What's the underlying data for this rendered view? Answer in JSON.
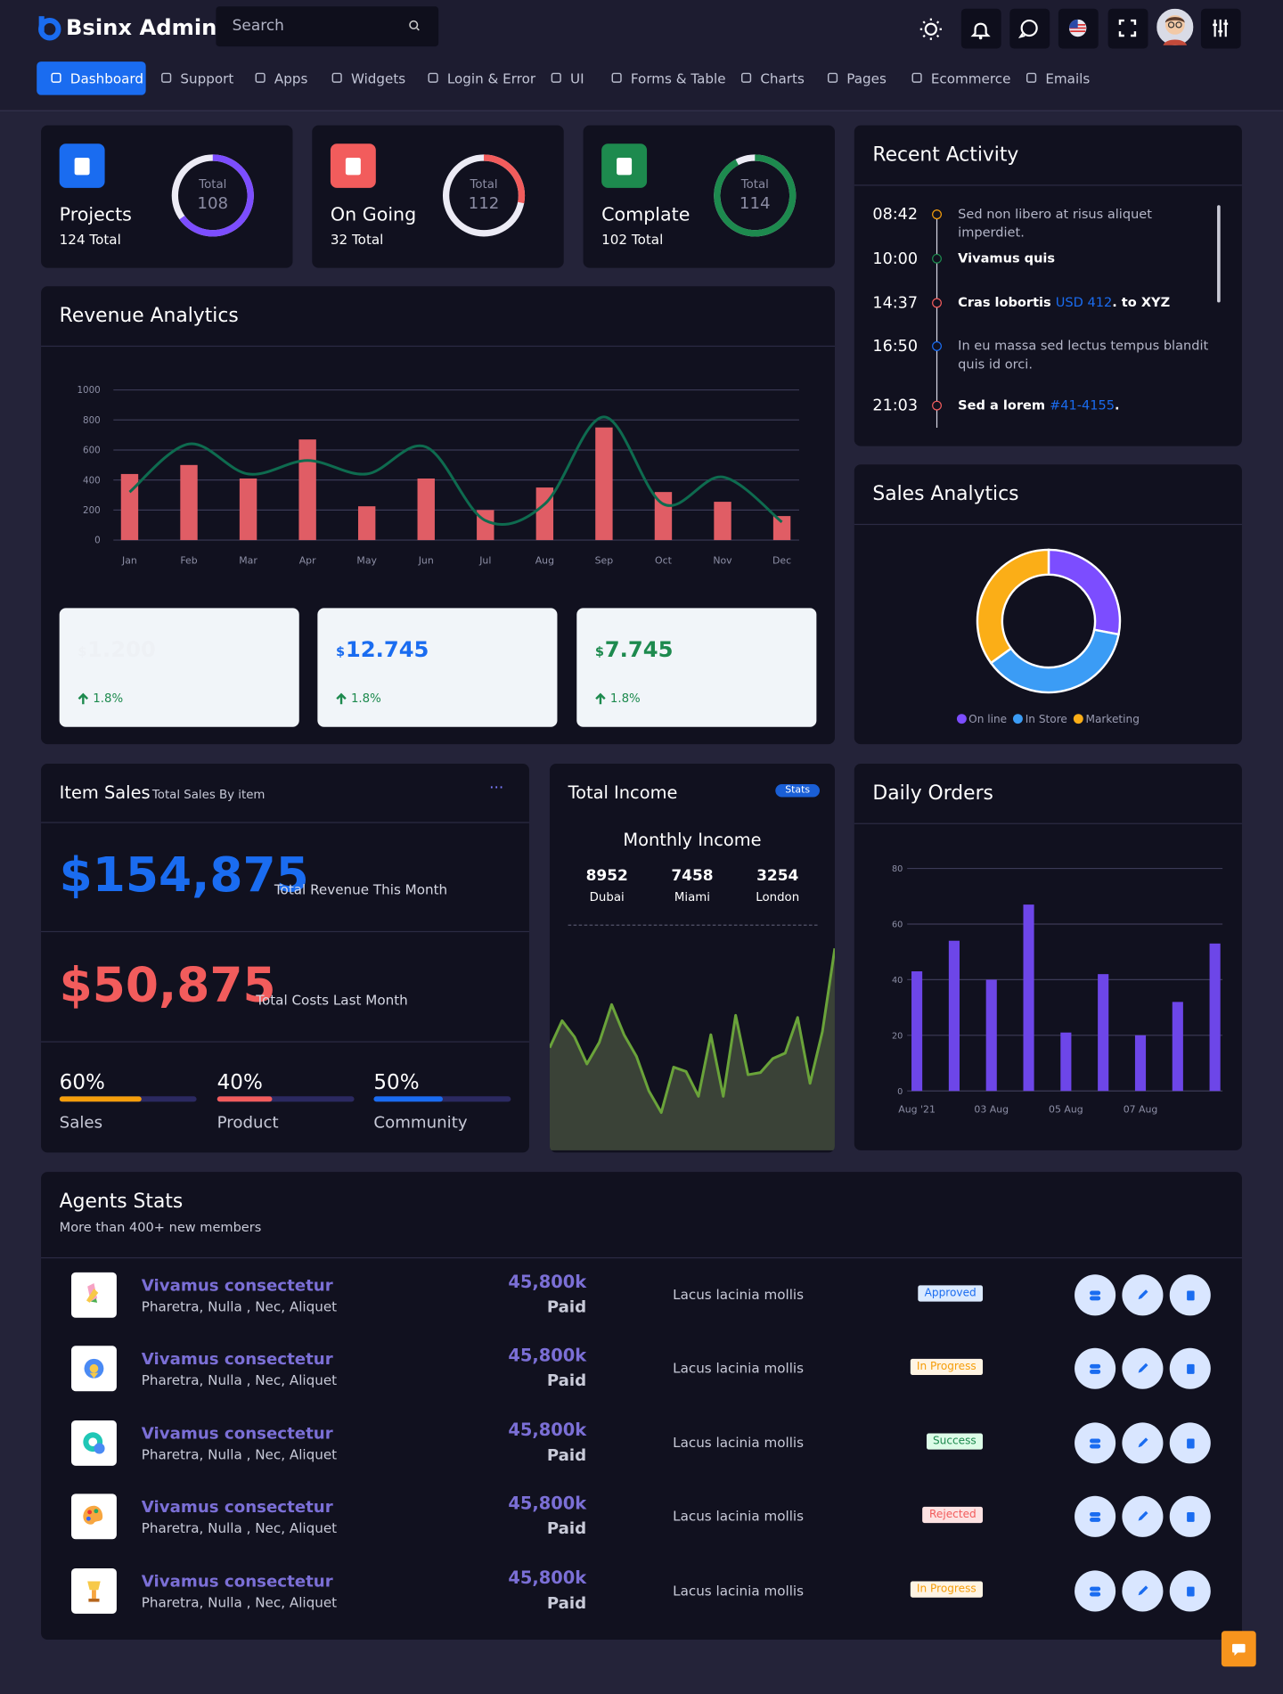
{
  "header": {
    "brand": "Bsinx Admin",
    "search_placeholder": "Search"
  },
  "nav": [
    {
      "label": "Dashboard",
      "active": true
    },
    {
      "label": "Support"
    },
    {
      "label": "Apps"
    },
    {
      "label": "Widgets"
    },
    {
      "label": "Login & Error"
    },
    {
      "label": "UI"
    },
    {
      "label": "Forms & Table"
    },
    {
      "label": "Charts"
    },
    {
      "label": "Pages"
    },
    {
      "label": "Ecommerce"
    },
    {
      "label": "Emails"
    }
  ],
  "stat_cards": [
    {
      "title": "Projects",
      "subtitle": "124 Total",
      "ring_label": "Total",
      "ring_value": 108,
      "progress": 65,
      "color": "#7c4dff",
      "icon_color": "#1a6cf0"
    },
    {
      "title": "On Going",
      "subtitle": "32 Total",
      "ring_label": "Total",
      "ring_value": 112,
      "progress": 28,
      "color": "#f25c5c",
      "icon_color": "#f25c5c"
    },
    {
      "title": "Complate",
      "subtitle": "102 Total",
      "ring_label": "Total",
      "ring_value": 114,
      "progress": 92,
      "color": "#1d8a4e",
      "icon_color": "#1d8a4e"
    }
  ],
  "revenue": {
    "title": "Revenue Analytics",
    "chart_data": {
      "type": "bar",
      "categories": [
        "Jan",
        "Feb",
        "Mar",
        "Apr",
        "May",
        "Jun",
        "Jul",
        "Aug",
        "Sep",
        "Oct",
        "Nov",
        "Dec"
      ],
      "series": [
        {
          "type": "bar",
          "color": "#e05d65",
          "values": [
            440,
            500,
            410,
            670,
            225,
            410,
            200,
            350,
            750,
            320,
            255,
            160
          ]
        },
        {
          "type": "line",
          "color": "#0e6b4f",
          "values": [
            320,
            640,
            440,
            530,
            440,
            620,
            130,
            240,
            820,
            240,
            420,
            120
          ]
        }
      ],
      "ylim": [
        0,
        1000
      ],
      "yticks": [
        0,
        200,
        400,
        600,
        800,
        1000
      ],
      "grid": true
    }
  },
  "summary_cards": [
    {
      "currency": "$",
      "amount": "1.200",
      "change": "1.8%",
      "color": "#eef1f5"
    },
    {
      "currency": "$",
      "amount": "12.745",
      "change": "1.8%",
      "color": "#1a6cf0"
    },
    {
      "currency": "$",
      "amount": "7.745",
      "change": "1.8%",
      "color": "#1d8a4e"
    }
  ],
  "recent_activity": {
    "title": "Recent Activity",
    "items": [
      {
        "time": "08:42",
        "color": "#f59e0b",
        "parts": [
          {
            "text": "Sed non libero at risus aliquet imperdiet."
          }
        ]
      },
      {
        "time": "10:00",
        "color": "#1d8a4e",
        "parts": [
          {
            "text": "Vivamus quis",
            "strong": true
          }
        ]
      },
      {
        "time": "14:37",
        "color": "#f25c5c",
        "parts": [
          {
            "text": "Cras lobortis ",
            "strong": true
          },
          {
            "text": "USD 412",
            "link": true
          },
          {
            "text": ". to XYZ",
            "strong": true
          }
        ]
      },
      {
        "time": "16:50",
        "color": "#1a6cf0",
        "parts": [
          {
            "text": "In eu massa sed lectus tempus blandit quis id orci."
          }
        ]
      },
      {
        "time": "21:03",
        "color": "#f25c5c",
        "parts": [
          {
            "text": "Sed a lorem ",
            "strong": true
          },
          {
            "text": "#41-4155",
            "link": true
          },
          {
            "text": ".",
            "strong": true
          }
        ]
      }
    ]
  },
  "sales_analytics": {
    "title": "Sales Analytics",
    "chart_data": {
      "type": "donut",
      "categories": [
        "On line",
        "In Store",
        "Marketing"
      ],
      "values": [
        28,
        37,
        35
      ],
      "colors": [
        "#7c4dff",
        "#3b9cf5",
        "#fbae17"
      ]
    }
  },
  "item_sales": {
    "title": "Item Sales",
    "subtitle": "Total Sales By item",
    "menu": "···",
    "amounts": [
      {
        "value": "$154,875",
        "caption": "Total Revenue This Month",
        "color": "#1a6cf0"
      },
      {
        "value": "$50,875",
        "caption": "Total Costs Last Month",
        "color": "#f25c5c"
      }
    ],
    "progress": [
      {
        "value": 60,
        "label": "60%",
        "name": "Sales",
        "color": "#f59e0b"
      },
      {
        "value": 40,
        "label": "40%",
        "name": "Product",
        "color": "#f25c5c"
      },
      {
        "value": 50,
        "label": "50%",
        "name": "Community",
        "color": "#1a6cf0"
      }
    ]
  },
  "total_income": {
    "title": "Total Income",
    "badge": "Stats",
    "subtitle": "Monthly Income",
    "cities": [
      {
        "value": 8952,
        "name": "Dubai"
      },
      {
        "value": 7458,
        "name": "Miami"
      },
      {
        "value": 3254,
        "name": "London"
      }
    ],
    "chart_data": {
      "type": "area",
      "values": [
        95,
        120,
        105,
        80,
        100,
        135,
        107,
        87,
        55,
        35,
        77,
        73,
        50,
        107,
        50,
        125,
        70,
        72,
        85,
        90,
        123,
        62,
        110,
        187
      ],
      "ylim": [
        0,
        210
      ],
      "color": "#6aa33a"
    }
  },
  "daily_orders": {
    "title": "Daily Orders",
    "chart_data": {
      "type": "bar",
      "categories": [
        "Aug '21",
        null,
        "03 Aug",
        null,
        "05 Aug",
        null,
        "07 Aug",
        null,
        null
      ],
      "values": [
        43,
        54,
        40,
        67,
        21,
        42,
        20,
        32,
        53
      ],
      "ylim": [
        0,
        80
      ],
      "yticks": [
        0,
        20,
        40,
        60,
        80
      ],
      "grid": true,
      "color": "#6d46e8"
    }
  },
  "agents": {
    "title": "Agents Stats",
    "subtitle": "More than 400+ new members",
    "rows": [
      {
        "name": "Vivamus consectetur",
        "tags": "Pharetra, Nulla , Nec, Aliquet",
        "amount": "45,800k",
        "payment": "Paid",
        "note": "Lacus lacinia mollis",
        "status": "Approved",
        "status_color": "#1a6cf0",
        "status_bg": "#dbeafe"
      },
      {
        "name": "Vivamus consectetur",
        "tags": "Pharetra, Nulla , Nec, Aliquet",
        "amount": "45,800k",
        "payment": "Paid",
        "note": "Lacus lacinia mollis",
        "status": "In Progress",
        "status_color": "#f59e0b",
        "status_bg": "#fff4e3"
      },
      {
        "name": "Vivamus consectetur",
        "tags": "Pharetra, Nulla , Nec, Aliquet",
        "amount": "45,800k",
        "payment": "Paid",
        "note": "Lacus lacinia mollis",
        "status": "Success",
        "status_color": "#1d8a4e",
        "status_bg": "#dcfce7"
      },
      {
        "name": "Vivamus consectetur",
        "tags": "Pharetra, Nulla , Nec, Aliquet",
        "amount": "45,800k",
        "payment": "Paid",
        "note": "Lacus lacinia mollis",
        "status": "Rejected",
        "status_color": "#f25c5c",
        "status_bg": "#fde2e2"
      },
      {
        "name": "Vivamus consectetur",
        "tags": "Pharetra, Nulla , Nec, Aliquet",
        "amount": "45,800k",
        "payment": "Paid",
        "note": "Lacus lacinia mollis",
        "status": "In Progress",
        "status_color": "#f59e0b",
        "status_bg": "#fff4e3"
      }
    ]
  }
}
